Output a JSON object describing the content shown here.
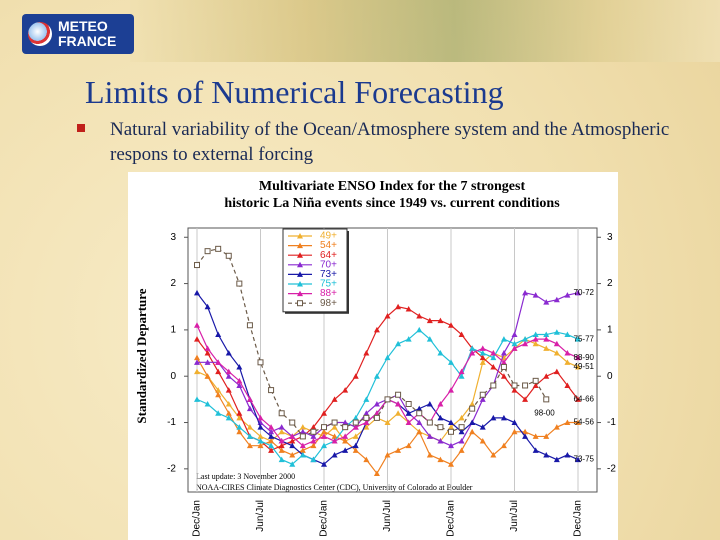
{
  "slide": {
    "logo": [
      "METEO",
      "FRANCE"
    ],
    "title": "Limits of Numerical Forecasting",
    "bullets": [
      "Natural variability of the Ocean/Atmosphere system and the Atmospheric respons to external forcing"
    ]
  },
  "chart_data": {
    "type": "line",
    "title": "Multivariate ENSO Index for the 7 strongest",
    "subtitle": "historic La Niña events since 1949 vs. current conditions",
    "y_label": "Standardized Departure",
    "footnotes": [
      "Last update: 3 November 2000",
      "NOAA-CIRES Climate Diagnostics Center (CDC), University of Colorado at Boulder"
    ],
    "categories": [
      "Dec/Jan",
      null,
      null,
      null,
      null,
      null,
      "Jun/Jul",
      null,
      null,
      null,
      null,
      null,
      "Dec/Jan",
      null,
      null,
      null,
      null,
      null,
      "Jun/Jul",
      null,
      null,
      null,
      null,
      null,
      "Dec/Jan",
      null,
      null,
      null,
      null,
      null,
      "Jun/Jul",
      null,
      null,
      null,
      null,
      null,
      "Dec/Jan"
    ],
    "ylim": [
      -2.5,
      3.2
    ],
    "yticks": [
      -2,
      -1,
      0,
      1,
      2,
      3
    ],
    "legend": "upper-left",
    "series": [
      {
        "name": "49+",
        "color": "#f0b030",
        "marker": "triangle",
        "end_label": "49-51",
        "values": [
          0.1,
          0.0,
          -0.3,
          -0.6,
          -0.9,
          -1.1,
          -1.3,
          -1.4,
          -1.2,
          -1.3,
          -1.1,
          -1.2,
          -1.3,
          -1.1,
          -1.4,
          -1.3,
          -1.1,
          -0.9,
          -1.0,
          -0.8,
          -1.0,
          -1.2,
          -1.3,
          -1.4,
          -1.1,
          -0.9,
          -0.6,
          0.3,
          0.5,
          0.4,
          0.6,
          0.8,
          0.7,
          0.6,
          0.5,
          0.3,
          0.2
        ]
      },
      {
        "name": "54+",
        "color": "#f08020",
        "marker": "triangle",
        "end_label": "54-56",
        "values": [
          0.4,
          0.0,
          -0.4,
          -0.8,
          -1.2,
          -1.5,
          -1.5,
          -1.4,
          -1.6,
          -1.7,
          -1.6,
          -1.5,
          -1.2,
          -1.3,
          -1.4,
          -1.6,
          -1.8,
          -2.1,
          -1.7,
          -1.6,
          -1.5,
          -1.2,
          -1.7,
          -1.8,
          -1.9,
          -1.6,
          -1.2,
          -1.4,
          -1.7,
          -1.5,
          -1.2,
          -1.2,
          -1.3,
          -1.3,
          -1.1,
          -1.0,
          -1.0
        ]
      },
      {
        "name": "64+",
        "color": "#e02020",
        "marker": "triangle",
        "end_label": "64-66",
        "values": [
          0.8,
          0.5,
          0.1,
          -0.3,
          -0.8,
          -1.3,
          -1.4,
          -1.6,
          -1.5,
          -1.4,
          -1.3,
          -1.1,
          -0.8,
          -0.5,
          -0.3,
          0.0,
          0.5,
          1.0,
          1.3,
          1.5,
          1.45,
          1.3,
          1.2,
          1.2,
          1.1,
          0.9,
          0.6,
          0.4,
          0.2,
          0.0,
          -0.3,
          -0.5,
          -0.2,
          0.0,
          0.1,
          -0.2,
          -0.5
        ]
      },
      {
        "name": "70+",
        "color": "#8a2ad0",
        "marker": "triangle",
        "end_label": "70-72",
        "values": [
          0.3,
          0.3,
          0.3,
          0.0,
          -0.2,
          -0.7,
          -1.0,
          -1.2,
          -1.1,
          -1.3,
          -1.2,
          -1.3,
          -1.1,
          -1.0,
          -1.0,
          -1.1,
          -0.8,
          -0.6,
          -0.5,
          -0.4,
          -0.8,
          -1.0,
          -1.3,
          -1.4,
          -1.5,
          -1.4,
          -1.0,
          -0.5,
          -0.2,
          0.5,
          0.9,
          1.8,
          1.75,
          1.6,
          1.65,
          1.75,
          1.8
        ]
      },
      {
        "name": "73+",
        "color": "#1818a8",
        "marker": "triangle",
        "end_label": "73-75",
        "values": [
          1.8,
          1.5,
          0.9,
          0.5,
          0.2,
          -0.5,
          -1.1,
          -1.3,
          -1.4,
          -1.5,
          -1.7,
          -1.8,
          -1.9,
          -1.7,
          -1.6,
          -1.5,
          -1.0,
          -0.8,
          -0.5,
          -0.6,
          -0.8,
          -0.7,
          -0.6,
          -0.9,
          -1.0,
          -1.2,
          -1.0,
          -1.1,
          -0.9,
          -0.9,
          -1.0,
          -1.3,
          -1.6,
          -1.7,
          -1.8,
          -1.7,
          -1.8
        ]
      },
      {
        "name": "75+",
        "color": "#20c0d8",
        "marker": "triangle",
        "end_label": "75-77",
        "values": [
          -0.5,
          -0.6,
          -0.8,
          -0.9,
          -1.1,
          -1.3,
          -1.4,
          -1.5,
          -1.8,
          -1.9,
          -1.7,
          -1.8,
          -1.5,
          -1.4,
          -1.1,
          -0.9,
          -0.5,
          0.0,
          0.4,
          0.7,
          0.8,
          1.0,
          0.8,
          0.5,
          0.3,
          0.0,
          0.6,
          0.5,
          0.4,
          0.8,
          0.7,
          0.8,
          0.9,
          0.9,
          0.95,
          0.9,
          0.8
        ]
      },
      {
        "name": "88+",
        "color": "#d820a8",
        "marker": "triangle",
        "end_label": "88-90",
        "values": [
          1.1,
          0.6,
          0.3,
          0.1,
          -0.1,
          -0.5,
          -0.9,
          -1.1,
          -1.4,
          -1.3,
          -1.5,
          -1.4,
          -1.3,
          -1.4,
          -1.3,
          -1.1,
          -1.0,
          -0.8,
          -0.5,
          -0.6,
          -1.0,
          -0.8,
          -1.0,
          -0.6,
          -0.3,
          0.1,
          0.5,
          0.6,
          0.5,
          0.3,
          0.6,
          0.7,
          0.8,
          0.8,
          0.7,
          0.5,
          0.4
        ]
      },
      {
        "name": "98+",
        "color": "#6b5a48",
        "marker": "square",
        "dashed": true,
        "end_label": "98-00",
        "values": [
          2.4,
          2.7,
          2.75,
          2.6,
          2.0,
          1.1,
          0.3,
          -0.3,
          -0.8,
          -1.0,
          -1.3,
          -1.2,
          -1.1,
          -1.0,
          -1.1,
          -1.0,
          -0.9,
          -0.9,
          -0.5,
          -0.4,
          -0.6,
          -0.8,
          -1.0,
          -1.1,
          -1.2,
          -1.1,
          -0.7,
          -0.4,
          -0.2,
          0.2,
          -0.2,
          -0.2,
          -0.1,
          -0.5,
          null,
          null,
          null
        ]
      }
    ]
  }
}
